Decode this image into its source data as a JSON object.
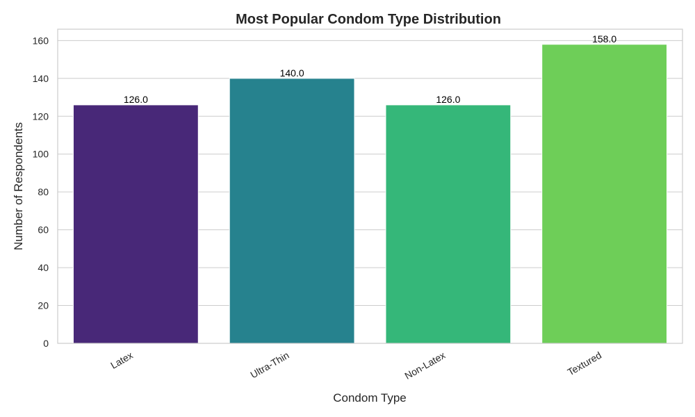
{
  "chart_data": {
    "type": "bar",
    "title": "Most Popular Condom Type Distribution",
    "xlabel": "Condom Type",
    "ylabel": "Number of Respondents",
    "categories": [
      "Latex",
      "Ultra-Thin",
      "Non-Latex",
      "Textured"
    ],
    "values": [
      126,
      140,
      126,
      158
    ],
    "value_labels": [
      "126.0",
      "140.0",
      "126.0",
      "158.0"
    ],
    "colors": [
      "#482878",
      "#26828e",
      "#35b779",
      "#6ece58"
    ],
    "ylim": [
      0,
      166
    ],
    "yticks": [
      0,
      20,
      40,
      60,
      80,
      100,
      120,
      140,
      160
    ],
    "grid": true,
    "legend": "none"
  }
}
